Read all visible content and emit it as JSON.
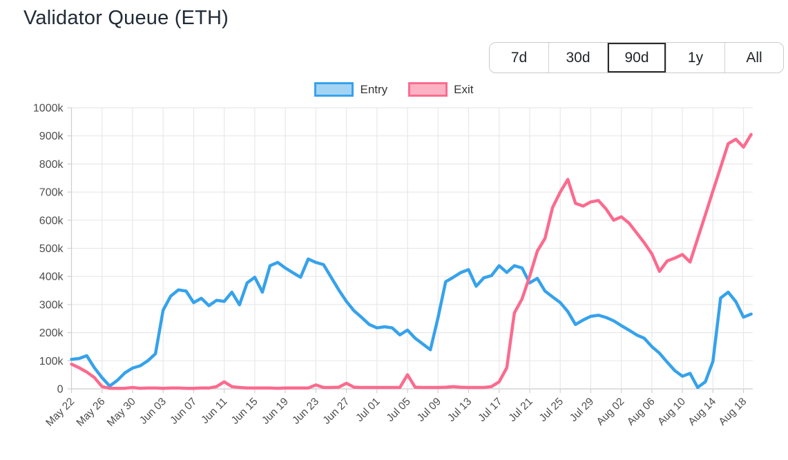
{
  "page": {
    "title": "Validator Queue (ETH)",
    "background": "#ffffff"
  },
  "range_selector": {
    "options": [
      {
        "label": "7d",
        "selected": false
      },
      {
        "label": "30d",
        "selected": false
      },
      {
        "label": "90d",
        "selected": true
      },
      {
        "label": "1y",
        "selected": false
      },
      {
        "label": "All",
        "selected": false
      }
    ]
  },
  "legend": {
    "items": [
      {
        "label": "Entry",
        "line_color": "#36a2eb",
        "fill_color": "#a4d4f4"
      },
      {
        "label": "Exit",
        "line_color": "#fb6b8e",
        "fill_color": "#fcb2c3"
      }
    ]
  },
  "chart_data": {
    "type": "line",
    "title": "Validator Queue (ETH)",
    "ylabel": "",
    "xlabel": "",
    "y_unit": "validators (thousands, shown as k)",
    "ylim": [
      0,
      1000
    ],
    "y_tick_labels": [
      "0",
      "100k",
      "200k",
      "300k",
      "400k",
      "500k",
      "600k",
      "700k",
      "800k",
      "900k",
      "1000k"
    ],
    "x_tick_labels": [
      "May 22",
      "May 26",
      "May 30",
      "Jun 03",
      "Jun 07",
      "Jun 11",
      "Jun 15",
      "Jun 19",
      "Jun 23",
      "Jun 27",
      "Jul 01",
      "Jul 05",
      "Jul 09",
      "Jul 13",
      "Jul 17",
      "Jul 21",
      "Jul 25",
      "Jul 29",
      "Aug 02",
      "Aug 06",
      "Aug 10",
      "Aug 14",
      "Aug 18"
    ],
    "x_tick_interval_days": 4,
    "x_daily_from": "May 22",
    "x_daily_to": "Aug 19",
    "grid": true,
    "legend_position": "top",
    "series": [
      {
        "name": "Entry",
        "color": "#36a2eb",
        "values_k": [
          105,
          108,
          118,
          75,
          40,
          10,
          30,
          57,
          74,
          82,
          100,
          125,
          280,
          330,
          352,
          348,
          307,
          322,
          296,
          315,
          311,
          344,
          299,
          377,
          397,
          344,
          438,
          450,
          430,
          413,
          397,
          462,
          450,
          442,
          397,
          352,
          311,
          278,
          254,
          229,
          217,
          221,
          217,
          192,
          209,
          180,
          160,
          139,
          254,
          381,
          397,
          414,
          424,
          365,
          395,
          403,
          438,
          414,
          438,
          430,
          377,
          393,
          348,
          327,
          307,
          275,
          229,
          245,
          258,
          262,
          254,
          242,
          225,
          209,
          192,
          180,
          150,
          127,
          95,
          65,
          45,
          55,
          5,
          25,
          98,
          323,
          344,
          310,
          255,
          266
        ]
      },
      {
        "name": "Exit",
        "color": "#fb6b8e",
        "values_k": [
          88,
          75,
          60,
          40,
          8,
          2,
          2,
          2,
          5,
          2,
          3,
          3,
          2,
          3,
          3,
          2,
          2,
          3,
          3,
          8,
          25,
          8,
          5,
          3,
          3,
          3,
          3,
          2,
          3,
          3,
          3,
          3,
          14,
          5,
          5,
          6,
          20,
          6,
          5,
          5,
          5,
          5,
          5,
          5,
          50,
          6,
          5,
          5,
          5,
          6,
          8,
          6,
          5,
          5,
          5,
          8,
          25,
          75,
          270,
          320,
          400,
          490,
          535,
          645,
          700,
          745,
          660,
          650,
          665,
          670,
          640,
          600,
          612,
          590,
          555,
          520,
          480,
          418,
          455,
          465,
          478,
          451,
          535,
          619,
          704,
          788,
          872,
          888,
          860,
          905
        ]
      }
    ]
  }
}
